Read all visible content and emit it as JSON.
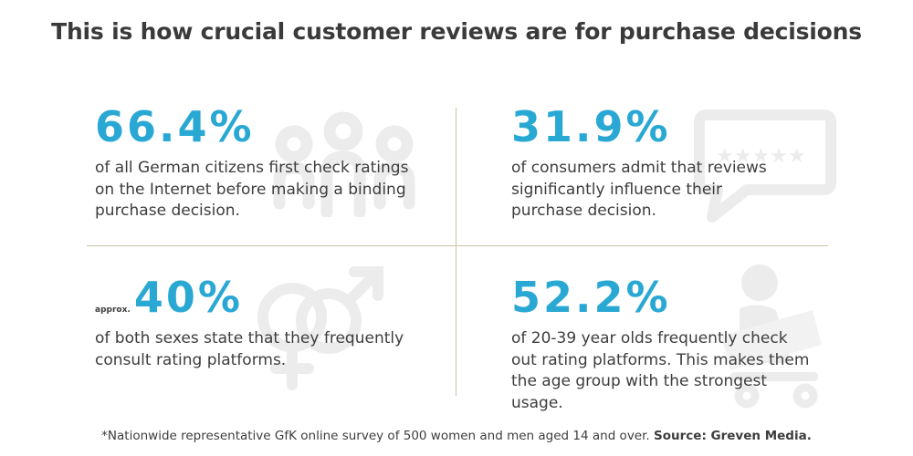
{
  "title": "This is how crucial customer reviews are for purchase decisions",
  "stats": [
    {
      "value": "66.4%",
      "prefix": "",
      "description": "of all German citizens first check ratings on the Internet before making a binding purchase decision.",
      "icon": "people-group-icon"
    },
    {
      "value": "31.9%",
      "prefix": "",
      "description": "of consumers admit that reviews significantly influence their purchase decision.",
      "icon": "speech-bubble-stars-icon"
    },
    {
      "value": "40%",
      "prefix": "approx.",
      "description": "of both sexes state that they frequently consult rating platforms.",
      "icon": "gender-symbols-icon"
    },
    {
      "value": "52.2%",
      "prefix": "",
      "description": "of 20-39 year olds frequently check out rating platforms. This makes them the age group with the strongest usage.",
      "icon": "person-laptop-icon"
    }
  ],
  "footnote": {
    "text": "*Nationwide representative GfK online survey of 500 women and men aged 14 and over.",
    "source": "Source: Greven Media."
  },
  "colors": {
    "accent": "#2aa8d4",
    "divider": "#c9c3a8",
    "icon": "#ececec",
    "text": "#3d3d3d"
  }
}
